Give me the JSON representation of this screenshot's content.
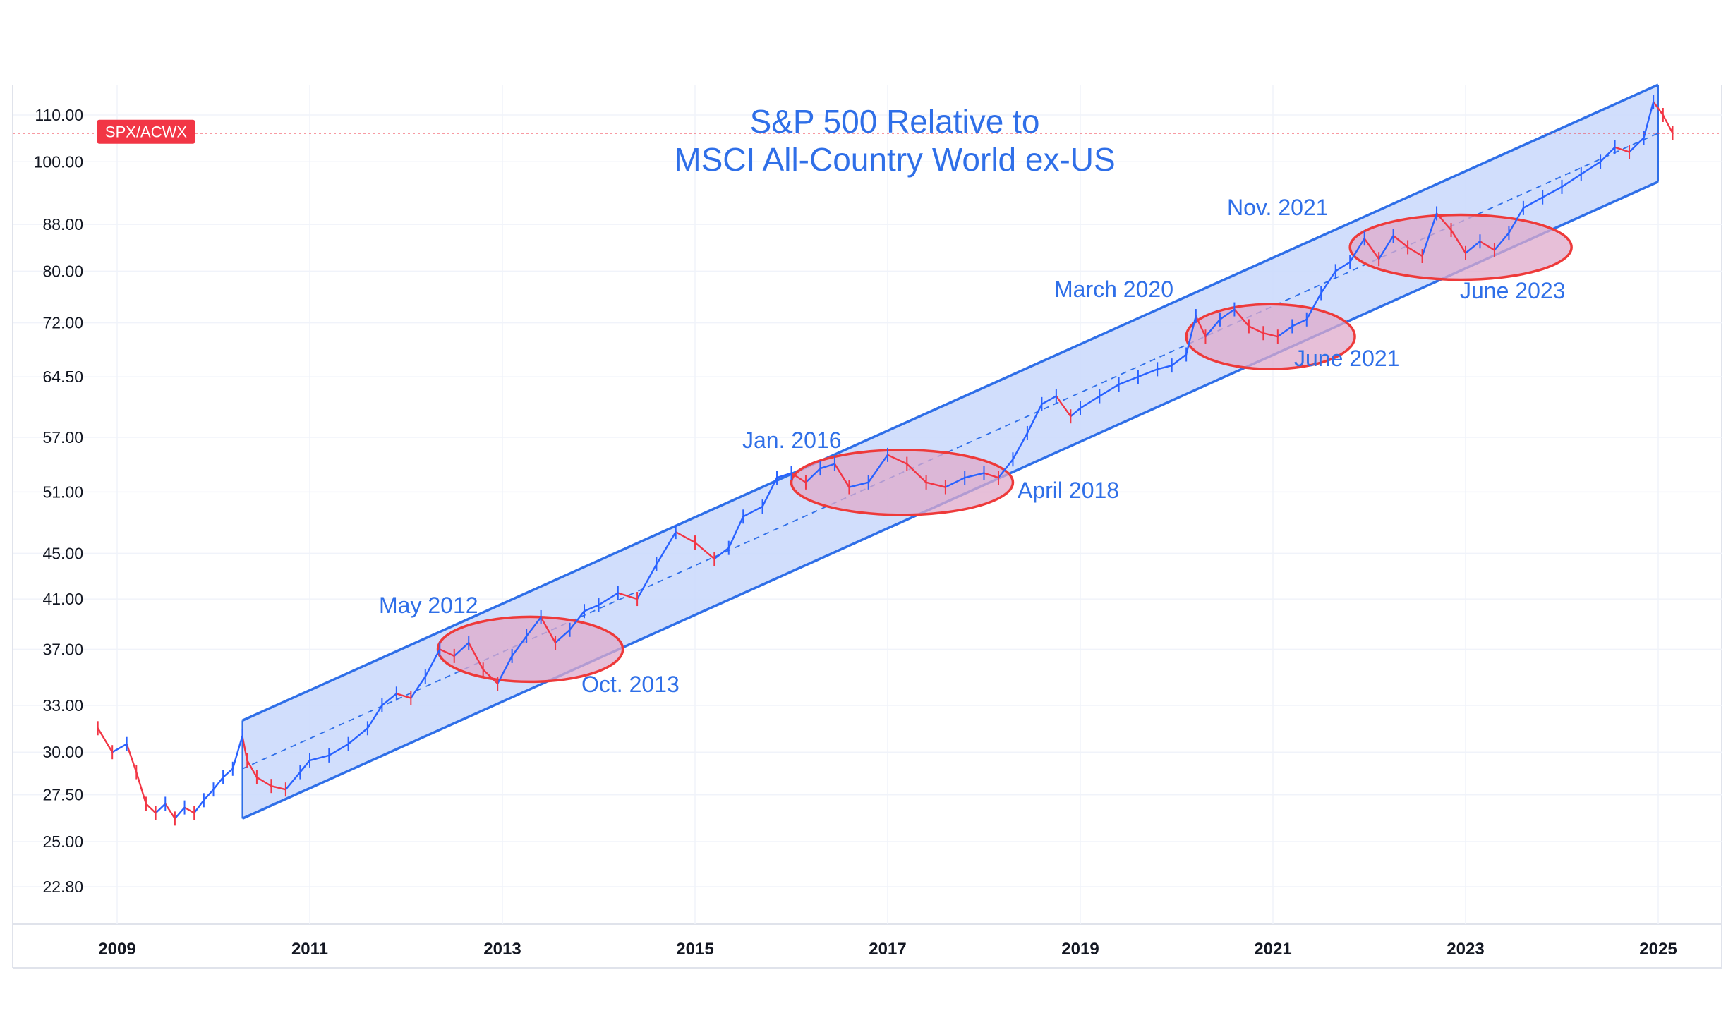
{
  "chart_data": {
    "type": "line",
    "title": "S&P 500 Relative to",
    "subtitle": "MSCI All-Country World ex-US",
    "symbol_label": "SPX/ACWX",
    "last_value": 106.0,
    "y_scale": "log",
    "ylim": [
      21.5,
      117
    ],
    "xlim": [
      2008.4,
      2025.9
    ],
    "grid": true,
    "y_ticks": [
      {
        "value": 110,
        "label": "110.00"
      },
      {
        "value": 100,
        "label": "100.00"
      },
      {
        "value": 88,
        "label": "88.00"
      },
      {
        "value": 80,
        "label": "80.00"
      },
      {
        "value": 72,
        "label": "72.00"
      },
      {
        "value": 64.5,
        "label": "64.50"
      },
      {
        "value": 57,
        "label": "57.00"
      },
      {
        "value": 51,
        "label": "51.00"
      },
      {
        "value": 45,
        "label": "45.00"
      },
      {
        "value": 41,
        "label": "41.00"
      },
      {
        "value": 37,
        "label": "37.00"
      },
      {
        "value": 33,
        "label": "33.00"
      },
      {
        "value": 30,
        "label": "30.00"
      },
      {
        "value": 27.5,
        "label": "27.50"
      },
      {
        "value": 25,
        "label": "25.00"
      },
      {
        "value": 22.8,
        "label": "22.80"
      }
    ],
    "x_ticks": [
      {
        "value": 2009,
        "label": "2009"
      },
      {
        "value": 2011,
        "label": "2011"
      },
      {
        "value": 2013,
        "label": "2013"
      },
      {
        "value": 2015,
        "label": "2015"
      },
      {
        "value": 2017,
        "label": "2017"
      },
      {
        "value": 2019,
        "label": "2019"
      },
      {
        "value": 2021,
        "label": "2021"
      },
      {
        "value": 2023,
        "label": "2023"
      },
      {
        "value": 2025,
        "label": "2025"
      }
    ],
    "series": [
      {
        "name": "SPX/ACWX",
        "color_up": "#2962ff",
        "color_down": "#f23645",
        "x": [
          2008.8,
          2008.95,
          2009.1,
          2009.2,
          2009.3,
          2009.4,
          2009.5,
          2009.6,
          2009.7,
          2009.8,
          2009.9,
          2010.0,
          2010.1,
          2010.2,
          2010.3,
          2010.35,
          2010.45,
          2010.6,
          2010.75,
          2010.9,
          2011.0,
          2011.2,
          2011.4,
          2011.6,
          2011.75,
          2011.9,
          2012.05,
          2012.2,
          2012.35,
          2012.5,
          2012.65,
          2012.8,
          2012.95,
          2013.1,
          2013.25,
          2013.4,
          2013.55,
          2013.7,
          2013.85,
          2014.0,
          2014.2,
          2014.4,
          2014.6,
          2014.8,
          2015.0,
          2015.2,
          2015.35,
          2015.5,
          2015.7,
          2015.85,
          2016.0,
          2016.15,
          2016.3,
          2016.45,
          2016.6,
          2016.8,
          2017.0,
          2017.2,
          2017.4,
          2017.6,
          2017.8,
          2018.0,
          2018.15,
          2018.3,
          2018.45,
          2018.6,
          2018.75,
          2018.9,
          2019.0,
          2019.2,
          2019.4,
          2019.6,
          2019.8,
          2019.95,
          2020.1,
          2020.2,
          2020.3,
          2020.45,
          2020.6,
          2020.75,
          2020.9,
          2021.05,
          2021.2,
          2021.35,
          2021.5,
          2021.65,
          2021.8,
          2021.95,
          2022.1,
          2022.25,
          2022.4,
          2022.55,
          2022.7,
          2022.85,
          2023.0,
          2023.15,
          2023.3,
          2023.45,
          2023.6,
          2023.8,
          2024.0,
          2024.2,
          2024.4,
          2024.55,
          2024.7,
          2024.85,
          2024.95,
          2025.05,
          2025.15
        ],
        "values": [
          31.5,
          30.0,
          30.5,
          28.8,
          27.0,
          26.5,
          27.0,
          26.2,
          26.8,
          26.5,
          27.2,
          27.8,
          28.5,
          29.0,
          31.0,
          29.5,
          28.5,
          28.0,
          27.8,
          28.8,
          29.5,
          29.8,
          30.5,
          31.5,
          33.0,
          33.8,
          33.5,
          35.0,
          37.0,
          36.5,
          37.5,
          35.5,
          34.5,
          36.5,
          38.0,
          39.5,
          37.5,
          38.5,
          40.0,
          40.5,
          41.5,
          41.0,
          44.0,
          47.0,
          46.0,
          44.5,
          45.5,
          48.5,
          49.5,
          52.5,
          53.0,
          52.0,
          53.5,
          54.0,
          51.5,
          52.0,
          55.0,
          54.0,
          52.0,
          51.5,
          52.5,
          53.0,
          52.5,
          54.5,
          57.5,
          61.0,
          62.0,
          59.5,
          60.5,
          62.0,
          63.5,
          64.5,
          65.5,
          66.0,
          67.5,
          73.0,
          70.0,
          72.5,
          74.0,
          71.5,
          70.5,
          70.0,
          71.5,
          72.5,
          76.5,
          80.0,
          81.5,
          85.5,
          82.0,
          86.0,
          84.0,
          82.5,
          90.0,
          87.0,
          83.0,
          85.0,
          83.5,
          86.5,
          91.0,
          93.0,
          95.0,
          97.5,
          100.0,
          103.0,
          102.0,
          105.0,
          113.0,
          110.0,
          106.0
        ]
      }
    ],
    "channel": {
      "upper": {
        "x": [
          2010.3,
          2025.0
        ],
        "y": [
          32.0,
          117.0
        ]
      },
      "lower": {
        "x": [
          2010.3,
          2025.0
        ],
        "y": [
          26.2,
          96.0
        ]
      },
      "mid": {
        "x": [
          2010.3,
          2025.0
        ],
        "y": [
          29.0,
          106.0
        ]
      }
    },
    "annotations": [
      {
        "text": "S&P 500 Relative to",
        "role": "title"
      },
      {
        "text": "MSCI All-Country World ex-US",
        "role": "subtitle"
      },
      {
        "text": "May 2012"
      },
      {
        "text": "Oct. 2013"
      },
      {
        "text": "Jan. 2016"
      },
      {
        "text": "April 2018"
      },
      {
        "text": "March 2020"
      },
      {
        "text": "June 2021"
      },
      {
        "text": "Nov. 2021"
      },
      {
        "text": "June 2023"
      }
    ],
    "highlight_periods": [
      {
        "x_range": [
          2012.33,
          2014.25
        ],
        "y_center": 37.0
      },
      {
        "x_range": [
          2016.0,
          2018.3
        ],
        "y_center": 52.0
      },
      {
        "x_range": [
          2020.1,
          2021.85
        ],
        "y_center": 70.0
      },
      {
        "x_range": [
          2021.8,
          2024.1
        ],
        "y_center": 84.0
      }
    ],
    "colors": {
      "channel_line": "#2f6fe8",
      "channel_fill": "#c9d8fb",
      "ellipse_stroke": "#ee3a3a",
      "ellipse_fill": "#dfaacb",
      "badge": "#f23645",
      "text_blue": "#2f6fe8"
    }
  }
}
